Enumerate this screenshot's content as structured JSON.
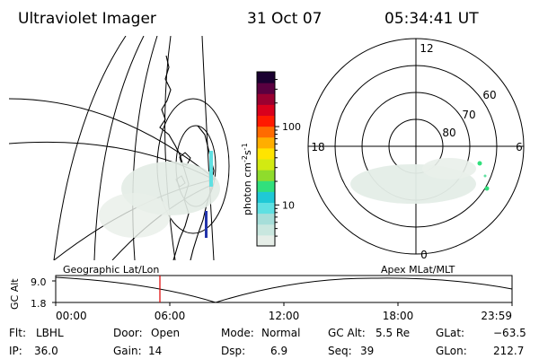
{
  "header": {
    "instrument": "Ultraviolet Imager",
    "date": "31 Oct 07",
    "time": "05:34:41 UT"
  },
  "colorbar": {
    "unit_label": "photon cm",
    "unit_exp1": "-2",
    "unit_mid": "s",
    "unit_exp2": "-1",
    "ticks": [
      {
        "label": "100",
        "value": 100
      },
      {
        "label": "10",
        "value": 10
      }
    ],
    "colors": [
      "#e6eee8",
      "#c9e7df",
      "#a6ded9",
      "#5fe0e2",
      "#1fc9d6",
      "#31e07c",
      "#8fdc2c",
      "#d2ea12",
      "#ffe400",
      "#ffae00",
      "#ff6b00",
      "#ff1a00",
      "#d9001c",
      "#9a0030",
      "#5a0040",
      "#1a0030"
    ]
  },
  "panels": {
    "left_label": "Geographic Lat/Lon",
    "right_label": "Apex MLat/MLT"
  },
  "polar_plot": {
    "mlt_labels": {
      "top": "12",
      "left": "18",
      "right": "6",
      "bottom": "0"
    },
    "lat_labels": [
      "60",
      "70",
      "80"
    ]
  },
  "altitude_plot": {
    "axis_label": "GC Alt",
    "y_ticks": [
      "9.0",
      "1.8"
    ],
    "x_ticks": [
      "00:00",
      "06:00",
      "12:00",
      "18:00",
      "23:59"
    ],
    "current_time_marker": "05:34:41"
  },
  "info": {
    "filter_label": "Flt:",
    "filter_value": "LBHL",
    "ip_label": "IP:",
    "ip_value": "36.0",
    "door_label": "Door:",
    "door_value": "Open",
    "gain_label": "Gain:",
    "gain_value": "14",
    "mode_label": "Mode:",
    "mode_value": "Normal",
    "dsp_label": "Dsp:",
    "dsp_value": "6.9",
    "gcalt_label": "GC Alt:",
    "gcalt_value": "5.5 Re",
    "seq_label": "Seq:",
    "seq_value": "39",
    "glat_label": "GLat:",
    "glat_value": "−63.5",
    "glon_label": "GLon:",
    "glon_value": "212.7"
  }
}
